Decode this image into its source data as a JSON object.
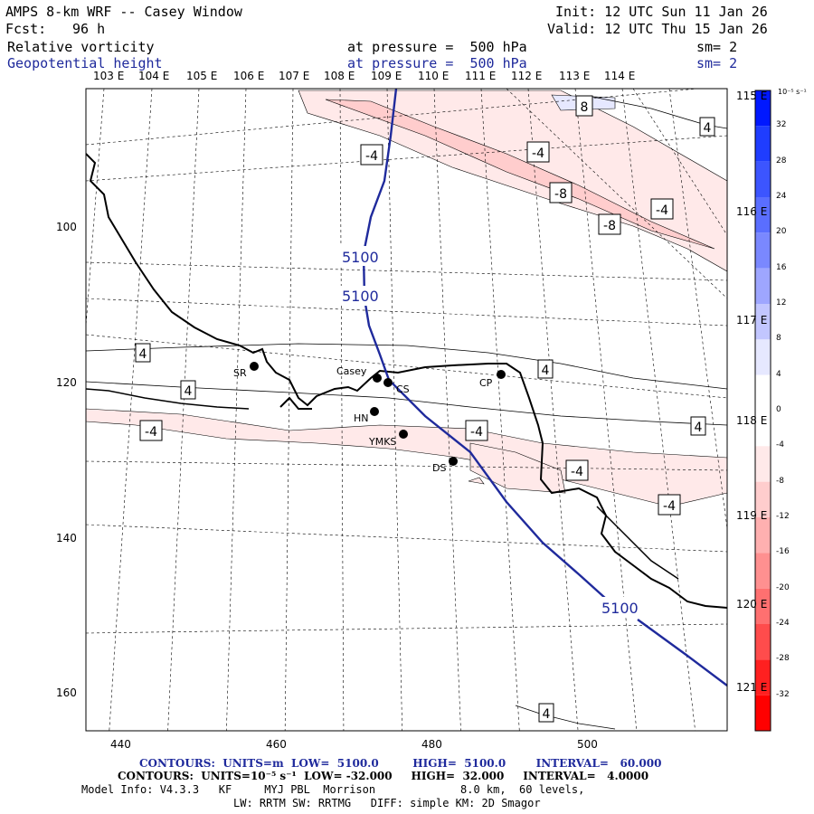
{
  "header": {
    "title": "AMPS 8-km WRF -- Casey Window",
    "fcst_label": "Fcst:",
    "fcst_value": "96 h",
    "init": "Init: 12 UTC Sun 11 Jan 26",
    "valid": "Valid: 12 UTC Thu 15 Jan 26",
    "field1": "Relative vorticity",
    "field1_pressure": "at pressure =  500 hPa",
    "field1_sm": "sm= 2",
    "field2": "Geopotential height",
    "field2_pressure": "at pressure =  500 hPa",
    "field2_sm": "sm= 2"
  },
  "lon_labels_top": [
    "103 E",
    "104 E",
    "105 E",
    "106 E",
    "107 E",
    "108 E",
    "109 E",
    "110 E",
    "111 E",
    "112 E",
    "113 E",
    "114 E"
  ],
  "lat_labels_right": [
    "115 E",
    "116 E",
    "117 E",
    "118 E",
    "119 E",
    "120 E",
    "121 E"
  ],
  "x_ticks": [
    "440",
    "460",
    "480",
    "500"
  ],
  "y_ticks": [
    "100",
    "120",
    "140",
    "160"
  ],
  "stations": [
    {
      "id": "SR",
      "label": "SR"
    },
    {
      "id": "Casey",
      "label": "Casey"
    },
    {
      "id": "CS",
      "label": "CS"
    },
    {
      "id": "CP",
      "label": "CP"
    },
    {
      "id": "HN",
      "label": "HN"
    },
    {
      "id": "YMKS",
      "label": "YMKS"
    },
    {
      "id": "DS",
      "label": "DS"
    }
  ],
  "contour_labels": {
    "vort": [
      "8",
      "-4",
      "-4",
      "-8",
      "-8",
      "-4",
      "4",
      "4",
      "4",
      "4",
      "-4",
      "-4",
      "4",
      "-4",
      "-4",
      "4"
    ],
    "height": [
      "5100",
      "5100",
      "5100"
    ]
  },
  "colorbar": {
    "units": "10⁻⁵ s⁻¹",
    "ticks": [
      "32",
      "28",
      "24",
      "20",
      "16",
      "12",
      "8",
      "4",
      "0",
      "-4",
      "-8",
      "-12",
      "-16",
      "-20",
      "-24",
      "-28",
      "-32"
    ],
    "colors": [
      "#0018ff",
      "#1f3dff",
      "#3c55ff",
      "#5a6eff",
      "#7a88ff",
      "#9ea6ff",
      "#c2c6ff",
      "#e6e8ff",
      "#ffffff",
      "#ffffff",
      "#ffe9e9",
      "#ffcdcd",
      "#ffb0b0",
      "#ff9090",
      "#ff7070",
      "#ff4c4c",
      "#ff2020",
      "#ff0000"
    ]
  },
  "footer": {
    "line1": "CONTOURS:  UNITS=m  LOW=  5100.0         HIGH=  5100.0        INTERVAL=   60.000",
    "line2": "CONTOURS:  UNITS=10⁻⁵ s⁻¹  LOW= -32.000     HIGH=  32.000     INTERVAL=   4.0000",
    "line3": "Model Info: V4.3.3   KF     MYJ PBL  Morrison             8.0 km,  60 levels,",
    "line4": "LW: RRTM SW: RRTMG   DIFF: simple KM: 2D Smagor"
  }
}
